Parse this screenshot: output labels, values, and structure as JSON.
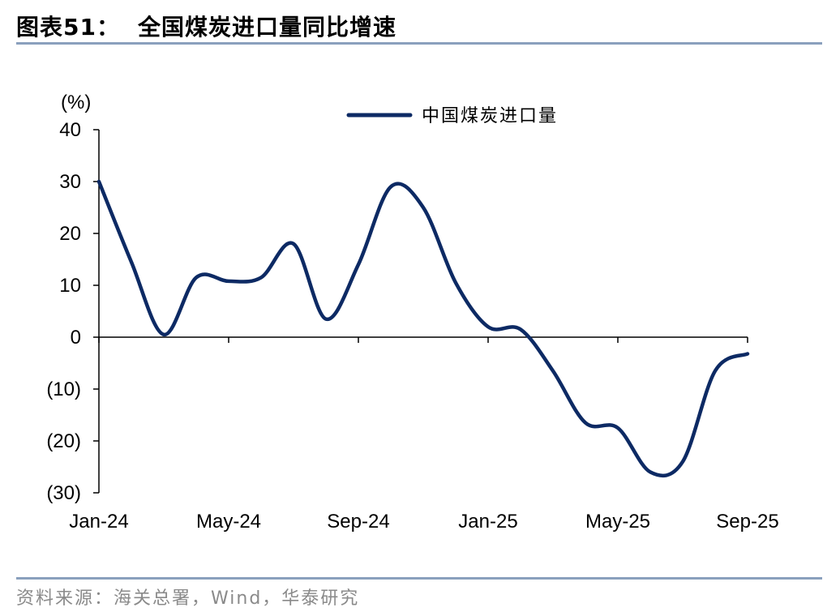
{
  "header": {
    "label": "图表51：",
    "title": "全国煤炭进口量同比增速"
  },
  "footer": {
    "source": "资料来源：海关总署，Wind，华泰研究"
  },
  "colors": {
    "series": "#0d2a64",
    "rule": "#8aa0bd",
    "source_text": "#8a8a8a"
  },
  "chart_data": {
    "type": "line",
    "unit_label": "(%)",
    "y_ticks": [
      "40",
      "30",
      "20",
      "10",
      "0",
      "(10)",
      "(20)",
      "(30)"
    ],
    "y_tick_values": [
      40,
      30,
      20,
      10,
      0,
      -10,
      -20,
      -30
    ],
    "ylim": [
      -30,
      40
    ],
    "x_tick_labels": [
      "Jan-24",
      "May-24",
      "Sep-24",
      "Jan-25",
      "May-25",
      "Sep-25"
    ],
    "x": [
      "Jan-24",
      "Feb-24",
      "Mar-24",
      "Apr-24",
      "May-24",
      "Jun-24",
      "Jul-24",
      "Aug-24",
      "Sep-24",
      "Oct-24",
      "Nov-24",
      "Dec-24",
      "Jan-25",
      "Feb-25",
      "Mar-25",
      "Apr-25",
      "May-25",
      "Jun-25",
      "Jul-25",
      "Aug-25",
      "Sep-25"
    ],
    "series": [
      {
        "name": "中国煤炭进口量",
        "values": [
          30,
          14.5,
          0.5,
          11.5,
          10.8,
          11.5,
          18,
          3.5,
          14,
          29,
          25,
          10.5,
          2,
          1.5,
          -6.5,
          -16.5,
          -17.5,
          -26,
          -24,
          -6.5,
          -3.2
        ]
      }
    ],
    "legend_position": "top-center",
    "grid": false
  }
}
